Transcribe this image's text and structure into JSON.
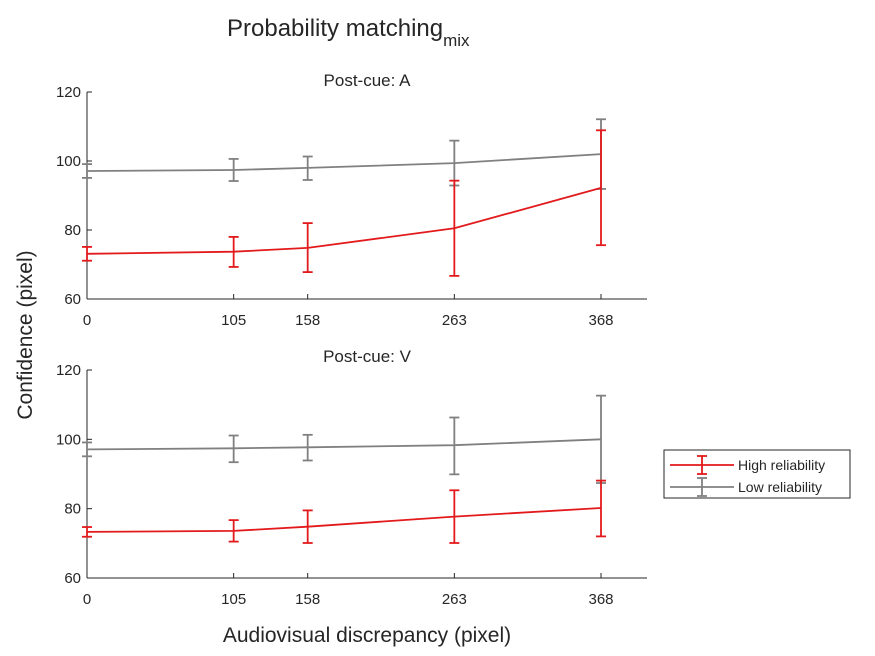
{
  "figure": {
    "title": "Probability matching",
    "title_subscript": "mix",
    "xlabel": "Audiovisual discrepancy (pixel)",
    "ylabel": "Confidence (pixel)"
  },
  "legend": {
    "placement": "right",
    "entries": [
      {
        "label": "High reliability",
        "color": "#e31a1c"
      },
      {
        "label": "Low reliability",
        "color": "#808080"
      }
    ]
  },
  "chart_data": [
    {
      "type": "line",
      "title": "Post-cue: A",
      "x": [
        0,
        105,
        158,
        263,
        368
      ],
      "x_tick_labels": [
        "0",
        "105",
        "158",
        "263",
        "368"
      ],
      "xlim": [
        0,
        368
      ],
      "ylim": [
        60,
        120
      ],
      "y_ticks": [
        60,
        80,
        100,
        120
      ],
      "y_tick_labels": [
        "60",
        "80",
        "100",
        "120"
      ],
      "series": [
        {
          "name": "High reliability",
          "color": "#e31a1c",
          "values": [
            73.1,
            73.7,
            74.8,
            80.5,
            92.2
          ],
          "err_low": [
            71.1,
            69.3,
            67.8,
            66.7,
            75.6
          ],
          "err_high": [
            75.1,
            78.0,
            82.0,
            94.3,
            108.9
          ]
        },
        {
          "name": "Low reliability",
          "color": "#808080",
          "values": [
            97.1,
            97.4,
            98.0,
            99.4,
            102.0
          ],
          "err_low": [
            95.1,
            94.2,
            94.5,
            92.9,
            91.9
          ],
          "err_high": [
            99.1,
            100.6,
            101.3,
            105.9,
            112.1
          ]
        }
      ]
    },
    {
      "type": "line",
      "title": "Post-cue: V",
      "x": [
        0,
        105,
        158,
        263,
        368
      ],
      "x_tick_labels": [
        "0",
        "105",
        "158",
        "263",
        "368"
      ],
      "xlim": [
        0,
        368
      ],
      "ylim": [
        60,
        120
      ],
      "y_ticks": [
        60,
        80,
        100,
        120
      ],
      "y_tick_labels": [
        "60",
        "80",
        "100",
        "120"
      ],
      "series": [
        {
          "name": "High reliability",
          "color": "#e31a1c",
          "values": [
            73.3,
            73.6,
            74.8,
            77.7,
            80.2
          ],
          "err_low": [
            71.9,
            70.5,
            70.1,
            70.1,
            72.0
          ],
          "err_high": [
            74.7,
            76.7,
            79.5,
            85.3,
            88.1
          ]
        },
        {
          "name": "Low reliability",
          "color": "#808080",
          "values": [
            97.1,
            97.4,
            97.7,
            98.3,
            100.0
          ],
          "err_low": [
            95.1,
            93.4,
            93.9,
            89.9,
            87.4
          ],
          "err_high": [
            99.1,
            101.1,
            101.3,
            106.3,
            112.6
          ]
        }
      ]
    }
  ]
}
